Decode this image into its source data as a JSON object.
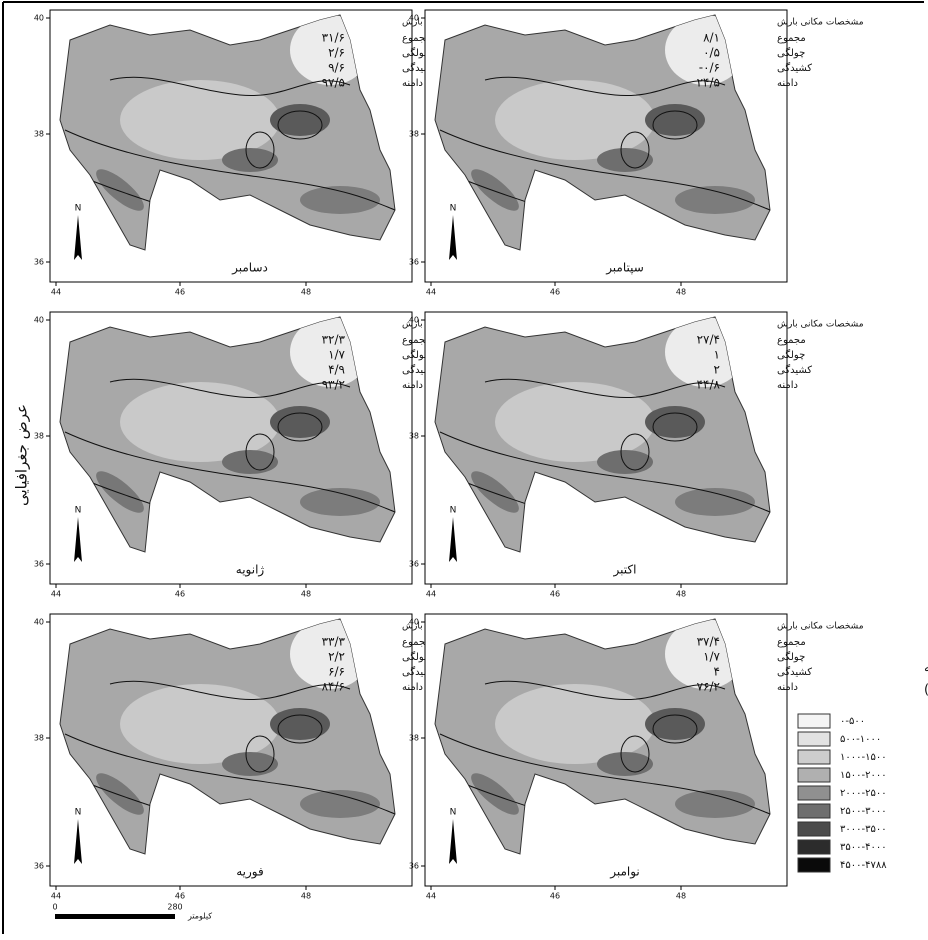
{
  "axis_label": "عرض جغرافیایی",
  "lat_ticks": [
    "40",
    "38",
    "36"
  ],
  "lon_ticks": [
    "44",
    "46",
    "48"
  ],
  "north_label": "N",
  "stats_title": "مشخصات مکانی بارش",
  "stat_names": [
    "مجموع",
    "چولگی",
    "کشیدگی",
    "دامنه"
  ],
  "panels": [
    {
      "month": "دسامبر",
      "stats": [
        "۳۱/۶",
        "۲/۶",
        "۹/۶",
        "۹۷/۵"
      ]
    },
    {
      "month": "سپتامبر",
      "stats": [
        "۸/۱",
        "۰/۵",
        "-۰/۶",
        "۲۴/۵"
      ]
    },
    {
      "month": "ژانویه",
      "stats": [
        "۳۲/۳",
        "۱/۷",
        "۴/۹",
        "۹۳/۲"
      ]
    },
    {
      "month": "اکتبر",
      "stats": [
        "۲۷/۴",
        "۱",
        "۲",
        "۴۴/۸"
      ]
    },
    {
      "month": "فوریه",
      "stats": [
        "۳۳/۳",
        "۲/۲",
        "۶/۶",
        "۸۴/۶"
      ]
    },
    {
      "month": "نوامبر",
      "stats": [
        "۳۷/۴",
        "۱/۷",
        "۴",
        "۷۶/۲"
      ]
    }
  ],
  "legend": {
    "title": [
      "طیف ارتفاعی منطقه",
      "شمال غرب ایران(متر)"
    ],
    "classes": [
      {
        "label": "۰-۵۰۰",
        "color": "#f4f4f4"
      },
      {
        "label": "۵۰۰-۱۰۰۰",
        "color": "#e2e2e2"
      },
      {
        "label": "۱۰۰۰-۱۵۰۰",
        "color": "#cdcdcd"
      },
      {
        "label": "۱۵۰۰-۲۰۰۰",
        "color": "#b0b0b0"
      },
      {
        "label": "۲۰۰۰-۲۵۰۰",
        "color": "#909090"
      },
      {
        "label": "۲۵۰۰-۳۰۰۰",
        "color": "#6e6e6e"
      },
      {
        "label": "۳۰۰۰-۳۵۰۰",
        "color": "#4c4c4c"
      },
      {
        "label": "۳۵۰۰-۴۰۰۰",
        "color": "#2c2c2c"
      },
      {
        "label": "۴۵۰۰-۴۷۸۸",
        "color": "#0a0a0a"
      }
    ]
  },
  "scale_bar": {
    "start": "0",
    "end": "280",
    "unit": "کیلومتر"
  }
}
